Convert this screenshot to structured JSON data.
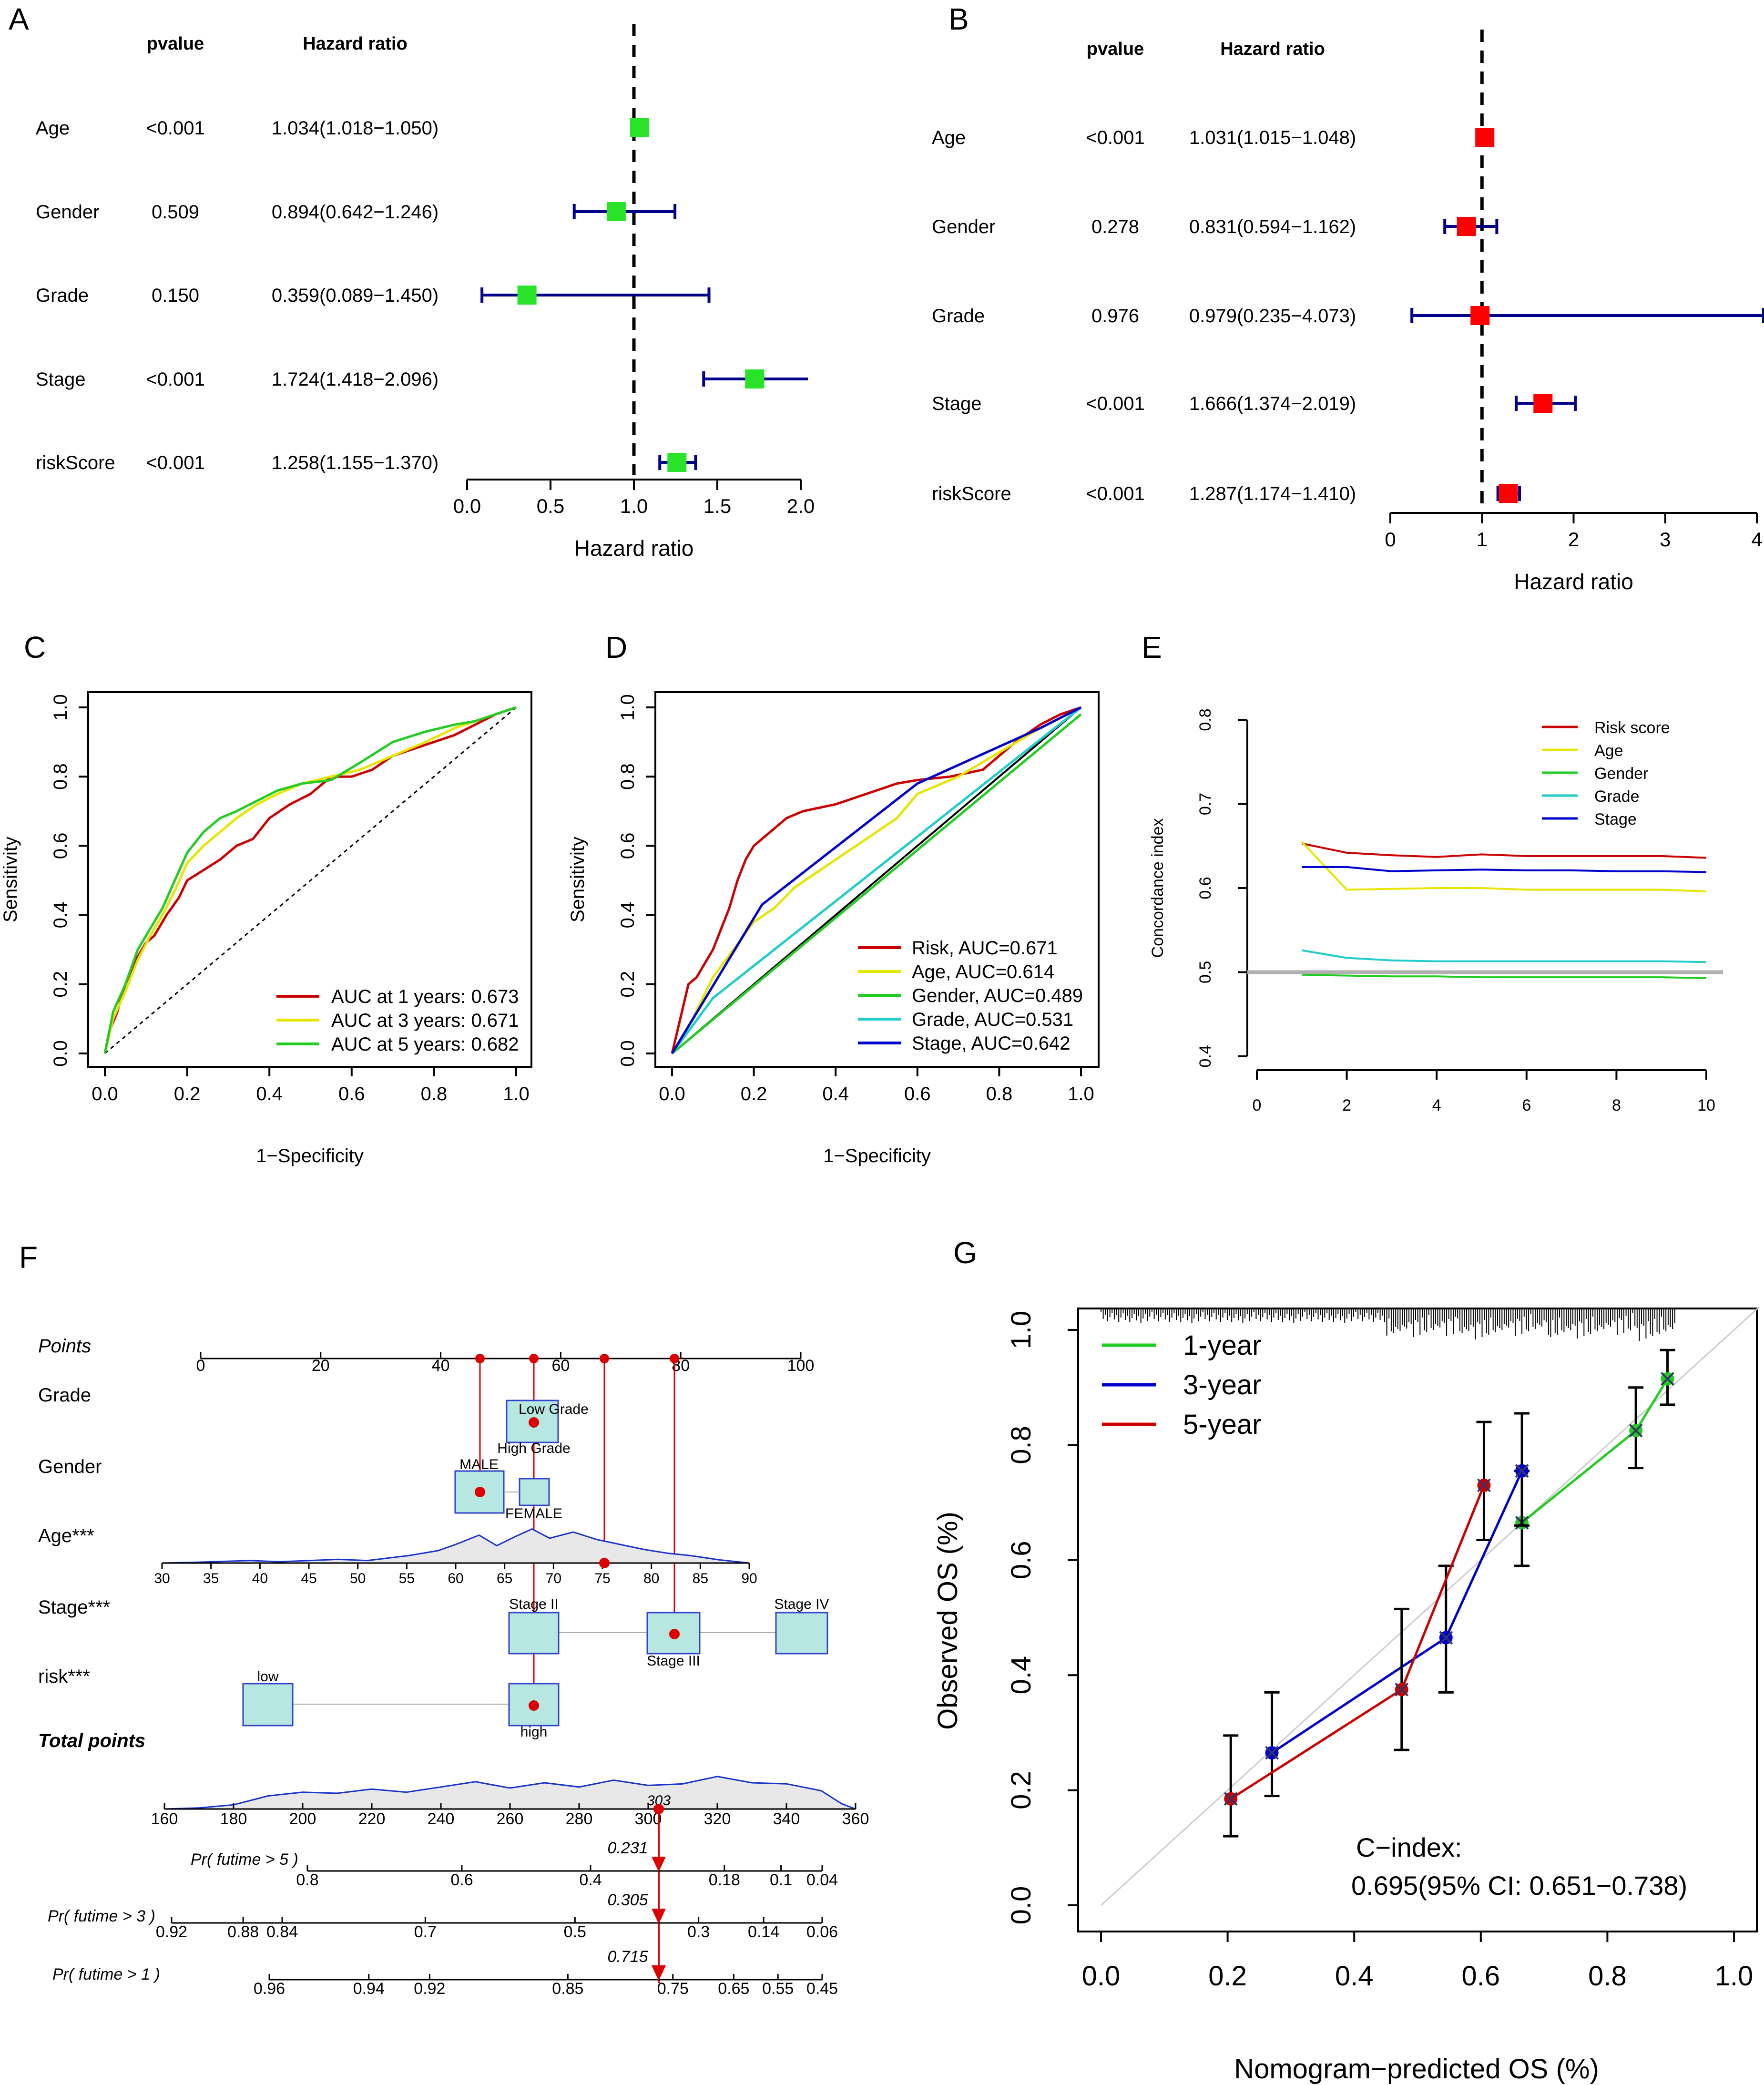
{
  "colors": {
    "red": "#e00000",
    "green": "#22c22e",
    "lime": "#29e329",
    "blue": "#0000cc",
    "navy": "#00008b",
    "yellow": "#e8e83a",
    "cyan": "#2fd3d9",
    "grey": "#b0b0b0",
    "teal_fill": "#b7e7e1"
  },
  "chart_data": [
    {
      "panel": "A",
      "type": "forest",
      "col_headers": [
        "pvalue",
        "Hazard ratio"
      ],
      "xlabel": "Hazard ratio",
      "xlim": [
        0,
        2
      ],
      "ticks": [
        "0.0",
        "0.5",
        "1.0",
        "1.5",
        "2.0"
      ],
      "ref_line": 1,
      "rows": [
        {
          "label": "Age",
          "pvalue": "<0.001",
          "hr_text": "1.034(1.018−1.050)",
          "hr": 1.034,
          "lo": 1.018,
          "hi": 1.05
        },
        {
          "label": "Gender",
          "pvalue": "0.509",
          "hr_text": "0.894(0.642−1.246)",
          "hr": 0.894,
          "lo": 0.642,
          "hi": 1.246
        },
        {
          "label": "Grade",
          "pvalue": "0.150",
          "hr_text": "0.359(0.089−1.450)",
          "hr": 0.359,
          "lo": 0.089,
          "hi": 1.45
        },
        {
          "label": "Stage",
          "pvalue": "<0.001",
          "hr_text": "1.724(1.418−2.096)",
          "hr": 1.724,
          "lo": 1.418,
          "hi": 2.096
        },
        {
          "label": "riskScore",
          "pvalue": "<0.001",
          "hr_text": "1.258(1.155−1.370)",
          "hr": 1.258,
          "lo": 1.155,
          "hi": 1.37
        }
      ]
    },
    {
      "panel": "B",
      "type": "forest",
      "col_headers": [
        "pvalue",
        "Hazard ratio"
      ],
      "xlabel": "Hazard ratio",
      "xlim": [
        0,
        4
      ],
      "ticks": [
        "0",
        "1",
        "2",
        "3",
        "4"
      ],
      "ref_line": 1,
      "rows": [
        {
          "label": "Age",
          "pvalue": "<0.001",
          "hr_text": "1.031(1.015−1.048)",
          "hr": 1.031,
          "lo": 1.015,
          "hi": 1.048
        },
        {
          "label": "Gender",
          "pvalue": "0.278",
          "hr_text": "0.831(0.594−1.162)",
          "hr": 0.831,
          "lo": 0.594,
          "hi": 1.162
        },
        {
          "label": "Grade",
          "pvalue": "0.976",
          "hr_text": "0.979(0.235−4.073)",
          "hr": 0.979,
          "lo": 0.235,
          "hi": 4.073
        },
        {
          "label": "Stage",
          "pvalue": "<0.001",
          "hr_text": "1.666(1.374−2.019)",
          "hr": 1.666,
          "lo": 1.374,
          "hi": 2.019
        },
        {
          "label": "riskScore",
          "pvalue": "<0.001",
          "hr_text": "1.287(1.174−1.410)",
          "hr": 1.287,
          "lo": 1.174,
          "hi": 1.41
        }
      ]
    },
    {
      "panel": "C",
      "type": "line",
      "subtype": "time-dependent ROC",
      "xlabel": "1−Specificity",
      "ylabel": "Sensitivity",
      "xlim": [
        0,
        1
      ],
      "ylim": [
        0,
        1
      ],
      "ticks": [
        "0.0",
        "0.2",
        "0.4",
        "0.6",
        "0.8",
        "1.0"
      ],
      "series": [
        {
          "name": "AUC at 1 years: 0.673",
          "color": "#cc0000",
          "x": [
            0,
            0.01,
            0.03,
            0.05,
            0.08,
            0.1,
            0.12,
            0.15,
            0.18,
            0.2,
            0.24,
            0.28,
            0.32,
            0.36,
            0.4,
            0.45,
            0.5,
            0.55,
            0.6,
            0.65,
            0.7,
            0.75,
            0.8,
            0.85,
            0.9,
            0.95,
            1
          ],
          "y": [
            0,
            0.06,
            0.12,
            0.2,
            0.28,
            0.32,
            0.34,
            0.4,
            0.45,
            0.5,
            0.53,
            0.56,
            0.6,
            0.62,
            0.68,
            0.72,
            0.75,
            0.8,
            0.8,
            0.82,
            0.86,
            0.88,
            0.9,
            0.92,
            0.95,
            0.98,
            1
          ]
        },
        {
          "name": "AUC at 3 years: 0.671",
          "color": "#e6e600",
          "x": [
            0,
            0.02,
            0.05,
            0.08,
            0.11,
            0.14,
            0.17,
            0.2,
            0.24,
            0.28,
            0.32,
            0.37,
            0.42,
            0.48,
            0.55,
            0.62,
            0.7,
            0.78,
            0.85,
            0.9,
            0.95,
            1
          ],
          "y": [
            0,
            0.1,
            0.18,
            0.27,
            0.34,
            0.4,
            0.47,
            0.55,
            0.6,
            0.64,
            0.68,
            0.72,
            0.75,
            0.78,
            0.8,
            0.82,
            0.86,
            0.9,
            0.94,
            0.96,
            0.98,
            1
          ]
        },
        {
          "name": "AUC at 5 years: 0.682",
          "color": "#22cc22",
          "x": [
            0,
            0.02,
            0.05,
            0.08,
            0.11,
            0.14,
            0.17,
            0.2,
            0.24,
            0.28,
            0.32,
            0.37,
            0.42,
            0.48,
            0.55,
            0.62,
            0.7,
            0.78,
            0.85,
            0.9,
            0.95,
            1
          ],
          "y": [
            0,
            0.12,
            0.2,
            0.3,
            0.36,
            0.42,
            0.5,
            0.58,
            0.64,
            0.68,
            0.7,
            0.73,
            0.76,
            0.78,
            0.79,
            0.84,
            0.9,
            0.93,
            0.95,
            0.96,
            0.98,
            1
          ]
        }
      ],
      "legend": "bottom-right"
    },
    {
      "panel": "D",
      "type": "line",
      "subtype": "ROC",
      "xlabel": "1−Specificity",
      "ylabel": "Sensitivity",
      "xlim": [
        0,
        1
      ],
      "ylim": [
        0,
        1
      ],
      "ticks": [
        "0.0",
        "0.2",
        "0.4",
        "0.6",
        "0.8",
        "1.0"
      ],
      "series": [
        {
          "name": "Risk, AUC=0.671",
          "color": "#cc0000",
          "x": [
            0,
            0.02,
            0.04,
            0.06,
            0.08,
            0.1,
            0.12,
            0.14,
            0.16,
            0.18,
            0.2,
            0.22,
            0.25,
            0.28,
            0.32,
            0.36,
            0.4,
            0.45,
            0.5,
            0.55,
            0.6,
            0.68,
            0.76,
            0.84,
            0.9,
            0.95,
            1
          ],
          "y": [
            0,
            0.1,
            0.2,
            0.22,
            0.26,
            0.3,
            0.36,
            0.42,
            0.5,
            0.56,
            0.6,
            0.62,
            0.65,
            0.68,
            0.7,
            0.71,
            0.72,
            0.74,
            0.76,
            0.78,
            0.79,
            0.8,
            0.82,
            0.9,
            0.95,
            0.98,
            1
          ]
        },
        {
          "name": "Age, AUC=0.614",
          "color": "#e6e600",
          "x": [
            0,
            0.05,
            0.1,
            0.15,
            0.2,
            0.25,
            0.3,
            0.35,
            0.4,
            0.45,
            0.5,
            0.55,
            0.6,
            0.7,
            0.8,
            0.9,
            1
          ],
          "y": [
            0,
            0.1,
            0.22,
            0.3,
            0.38,
            0.42,
            0.48,
            0.52,
            0.56,
            0.6,
            0.64,
            0.68,
            0.75,
            0.8,
            0.87,
            0.94,
            1
          ]
        },
        {
          "name": "Gender, AUC=0.489",
          "color": "#22cc22",
          "x": [
            0,
            1
          ],
          "y": [
            0,
            0.98
          ]
        },
        {
          "name": "Grade, AUC=0.531",
          "color": "#22cccc",
          "x": [
            0,
            0.1,
            1
          ],
          "y": [
            0,
            0.16,
            1
          ]
        },
        {
          "name": "Stage, AUC=0.642",
          "color": "#0000cc",
          "x": [
            0,
            0.22,
            0.6,
            0.75,
            0.9,
            1
          ],
          "y": [
            0,
            0.43,
            0.78,
            0.86,
            0.94,
            1
          ]
        }
      ],
      "diagonal": true,
      "legend": "bottom-right"
    },
    {
      "panel": "E",
      "type": "line",
      "ylabel": "Concordance index",
      "xlim": [
        0,
        10
      ],
      "ylim": [
        0.4,
        0.8
      ],
      "xticks": [
        "0",
        "2",
        "4",
        "6",
        "8",
        "10"
      ],
      "yticks": [
        "0.4",
        "0.5",
        "0.6",
        "0.7",
        "0.8"
      ],
      "ref_line": 0.5,
      "series": [
        {
          "name": "Risk score",
          "color": "#cc0000",
          "x": [
            1,
            2,
            3,
            4,
            5,
            6,
            7,
            8,
            9,
            10
          ],
          "y": [
            0.653,
            0.642,
            0.639,
            0.637,
            0.64,
            0.638,
            0.638,
            0.638,
            0.638,
            0.636
          ]
        },
        {
          "name": "Age",
          "color": "#e6e600",
          "x": [
            1,
            2,
            3,
            4,
            5,
            6,
            7,
            8,
            9,
            10
          ],
          "y": [
            0.655,
            0.598,
            0.599,
            0.6,
            0.6,
            0.598,
            0.598,
            0.598,
            0.598,
            0.596
          ]
        },
        {
          "name": "Gender",
          "color": "#22cc22",
          "x": [
            1,
            2,
            3,
            4,
            5,
            6,
            7,
            8,
            9,
            10
          ],
          "y": [
            0.497,
            0.496,
            0.495,
            0.495,
            0.494,
            0.494,
            0.494,
            0.494,
            0.494,
            0.493
          ]
        },
        {
          "name": "Grade",
          "color": "#22cccc",
          "x": [
            1,
            2,
            3,
            4,
            5,
            6,
            7,
            8,
            9,
            10
          ],
          "y": [
            0.526,
            0.517,
            0.514,
            0.513,
            0.513,
            0.513,
            0.513,
            0.513,
            0.513,
            0.512
          ]
        },
        {
          "name": "Stage",
          "color": "#0000cc",
          "x": [
            1,
            2,
            3,
            4,
            5,
            6,
            7,
            8,
            9,
            10
          ],
          "y": [
            0.625,
            0.625,
            0.62,
            0.621,
            0.622,
            0.621,
            0.621,
            0.62,
            0.62,
            0.619
          ]
        }
      ],
      "legend": "top-right"
    },
    {
      "panel": "F",
      "type": "nomogram",
      "rows": [
        {
          "label": "Points",
          "italic": true,
          "ticks": [
            "0",
            "20",
            "40",
            "60",
            "80",
            "100"
          ]
        },
        {
          "label": "Grade",
          "levels": [
            "Low Grade",
            "High Grade"
          ]
        },
        {
          "label": "Gender",
          "levels": [
            "MALE",
            "FEMALE"
          ]
        },
        {
          "label": "Age***",
          "ticks": [
            "30",
            "35",
            "40",
            "45",
            "50",
            "55",
            "60",
            "65",
            "70",
            "75",
            "80",
            "85",
            "90"
          ]
        },
        {
          "label": "Stage***",
          "levels": [
            "Stage II",
            "Stage III",
            "Stage IV"
          ]
        },
        {
          "label": "risk***",
          "levels": [
            "low",
            "high"
          ]
        },
        {
          "label": "Total points",
          "italic": true,
          "bold": true,
          "ticks": [
            "160",
            "180",
            "200",
            "220",
            "240",
            "260",
            "280",
            "300",
            "320",
            "340",
            "360"
          ],
          "marker": "303"
        },
        {
          "label": "Pr( futime > 5 )",
          "italic": true,
          "ticks": [
            "0.8",
            "0.6",
            "0.4",
            "0.18",
            "0.1",
            "0.04"
          ],
          "marker": "0.231"
        },
        {
          "label": "Pr( futime > 3 )",
          "italic": true,
          "ticks": [
            "0.92",
            "0.88",
            "0.84",
            "0.7",
            "0.5",
            "0.3",
            "0.14",
            "0.06"
          ],
          "marker": "0.305"
        },
        {
          "label": "Pr( futime > 1 )",
          "italic": true,
          "ticks": [
            "0.96",
            "0.94",
            "0.92",
            "0.85",
            "0.75",
            "0.65",
            "0.55",
            "0.45"
          ],
          "marker": "0.715"
        }
      ]
    },
    {
      "panel": "G",
      "type": "scatter",
      "subtype": "calibration",
      "xlabel": "Nomogram−predicted OS (%)",
      "ylabel": "Observed OS (%)",
      "xlim": [
        0,
        1
      ],
      "ylim": [
        0,
        1
      ],
      "ticks": [
        "0.0",
        "0.2",
        "0.4",
        "0.6",
        "0.8",
        "1.0"
      ],
      "series": [
        {
          "name": "1-year",
          "color": "#22cc22",
          "x": [
            0.665,
            0.845,
            0.895
          ],
          "y": [
            0.665,
            0.825,
            0.915
          ],
          "lo": [
            0.59,
            0.76,
            0.87
          ],
          "hi": [
            0.755,
            0.9,
            0.965
          ]
        },
        {
          "name": "3-year",
          "color": "#0000cc",
          "x": [
            0.27,
            0.545,
            0.665
          ],
          "y": [
            0.265,
            0.465,
            0.755
          ],
          "lo": [
            0.19,
            0.37,
            0.66
          ],
          "hi": [
            0.37,
            0.59,
            0.855
          ]
        },
        {
          "name": "5-year",
          "color": "#cc0000",
          "x": [
            0.205,
            0.475,
            0.605
          ],
          "y": [
            0.185,
            0.375,
            0.73
          ],
          "lo": [
            0.12,
            0.27,
            0.635
          ],
          "hi": [
            0.295,
            0.515,
            0.84
          ]
        }
      ],
      "annotation": [
        "C−index:",
        "0.695(95% CI: 0.651−0.738)"
      ],
      "legend": "top-left"
    }
  ]
}
